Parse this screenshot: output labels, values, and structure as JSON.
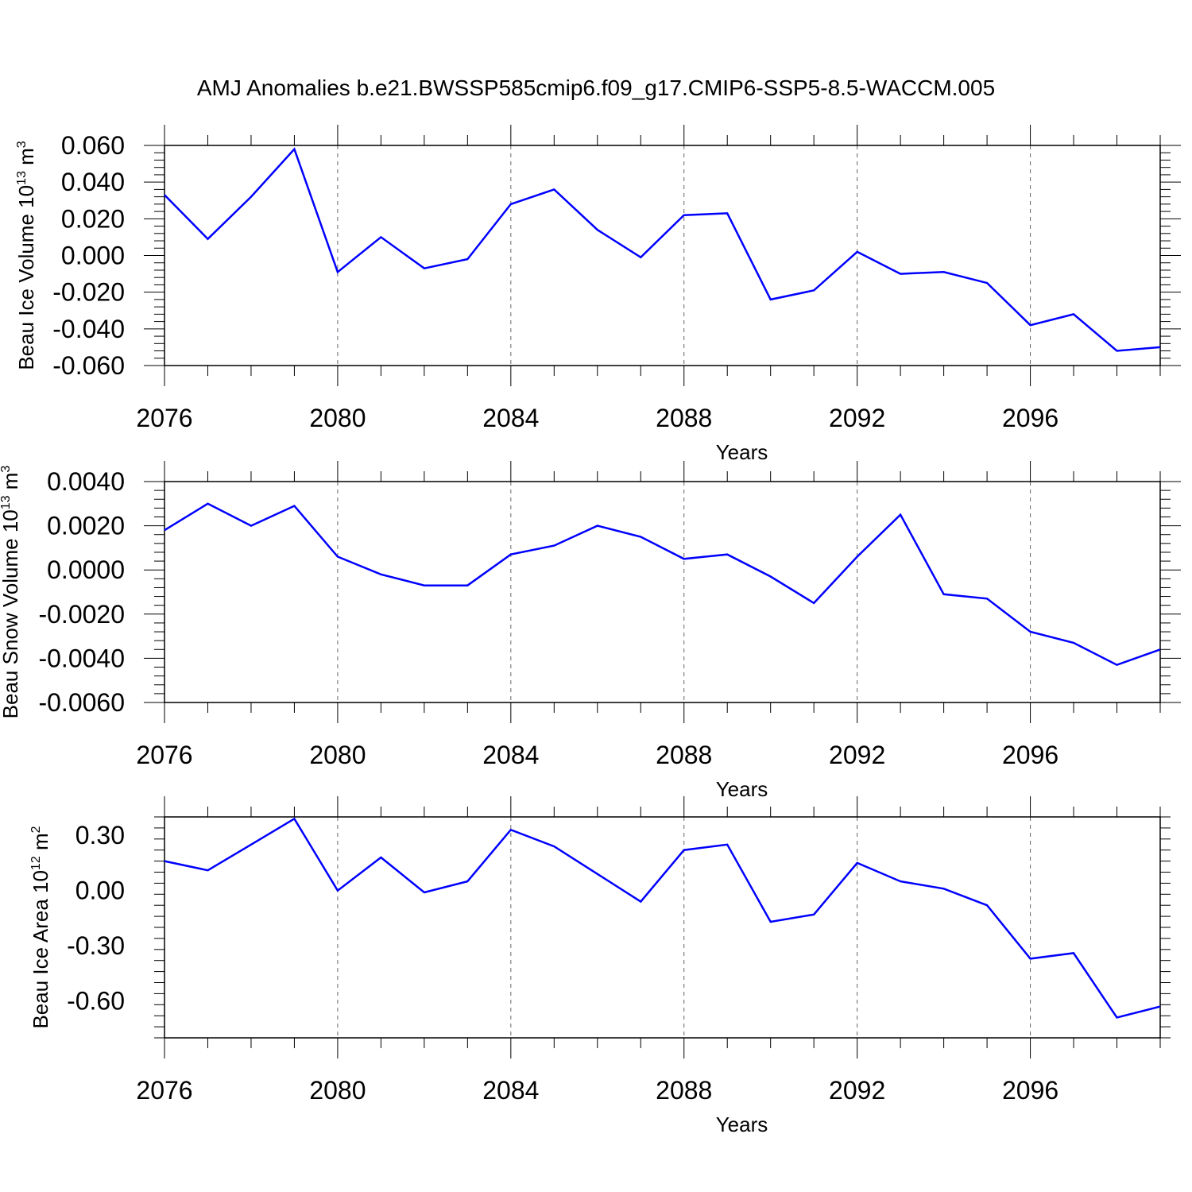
{
  "title": "AMJ Anomalies b.e21.BWSSP585cmip6.f09_g17.CMIP6-SSP5-8.5-WACCM.005",
  "line_color": "#0000ff",
  "chart_data": [
    {
      "type": "line",
      "ylabel_base": "Beau Ice Volume 10",
      "ylabel_exp": "13",
      "ylabel_unit": " m",
      "ylabel_unit_exp": "3",
      "xlabel": "Years",
      "xlim": [
        2076,
        2099
      ],
      "ylim": [
        -0.06,
        0.06
      ],
      "x_ticks": [
        "2076",
        "2080",
        "2084",
        "2088",
        "2092",
        "2096"
      ],
      "y_ticks": [
        "0.060",
        "0.040",
        "0.020",
        "0.000",
        "-0.020",
        "-0.040",
        "-0.060"
      ],
      "x": [
        2076,
        2077,
        2078,
        2079,
        2080,
        2081,
        2082,
        2083,
        2084,
        2085,
        2086,
        2087,
        2088,
        2089,
        2090,
        2091,
        2092,
        2093,
        2094,
        2095,
        2096,
        2097,
        2098,
        2099
      ],
      "values": [
        0.033,
        0.009,
        0.032,
        0.058,
        -0.009,
        0.01,
        -0.007,
        -0.002,
        0.028,
        0.036,
        0.014,
        -0.001,
        0.022,
        0.023,
        -0.024,
        -0.019,
        0.002,
        -0.01,
        -0.009,
        -0.015,
        -0.038,
        -0.032,
        -0.052,
        -0.05
      ]
    },
    {
      "type": "line",
      "ylabel_base": "Beau Snow Volume 10",
      "ylabel_exp": "13",
      "ylabel_unit": " m",
      "ylabel_unit_exp": "3",
      "xlabel": "Years",
      "xlim": [
        2076,
        2099
      ],
      "ylim": [
        -0.006,
        0.004
      ],
      "x_ticks": [
        "2076",
        "2080",
        "2084",
        "2088",
        "2092",
        "2096"
      ],
      "y_ticks": [
        "0.0040",
        "0.0020",
        "0.0000",
        "-0.0020",
        "-0.0040",
        "-0.0060"
      ],
      "x": [
        2076,
        2077,
        2078,
        2079,
        2080,
        2081,
        2082,
        2083,
        2084,
        2085,
        2086,
        2087,
        2088,
        2089,
        2090,
        2091,
        2092,
        2093,
        2094,
        2095,
        2096,
        2097,
        2098,
        2099
      ],
      "values": [
        0.0018,
        0.003,
        0.002,
        0.0029,
        0.0006,
        -0.0002,
        -0.0007,
        -0.0007,
        0.0007,
        0.0011,
        0.002,
        0.0015,
        0.0005,
        0.0007,
        -0.0003,
        -0.0015,
        0.0006,
        0.0025,
        -0.0011,
        -0.0013,
        -0.0028,
        -0.0033,
        -0.0043,
        -0.0036
      ]
    },
    {
      "type": "line",
      "ylabel_base": "Beau Ice Area 10",
      "ylabel_exp": "12",
      "ylabel_unit": " m",
      "ylabel_unit_exp": "2",
      "xlabel": "Years",
      "xlim": [
        2076,
        2099
      ],
      "ylim": [
        -0.8,
        0.4
      ],
      "x_ticks": [
        "2076",
        "2080",
        "2084",
        "2088",
        "2092",
        "2096"
      ],
      "y_ticks": [
        "0.30",
        "0.00",
        "-0.30",
        "-0.60"
      ],
      "x": [
        2076,
        2077,
        2078,
        2079,
        2080,
        2081,
        2082,
        2083,
        2084,
        2085,
        2086,
        2087,
        2088,
        2089,
        2090,
        2091,
        2092,
        2093,
        2094,
        2095,
        2096,
        2097,
        2098,
        2099
      ],
      "values": [
        0.16,
        0.11,
        0.25,
        0.39,
        0.0,
        0.18,
        -0.01,
        0.05,
        0.33,
        0.24,
        0.09,
        -0.06,
        0.22,
        0.25,
        -0.17,
        -0.13,
        0.15,
        0.05,
        0.01,
        -0.08,
        -0.37,
        -0.34,
        -0.69,
        -0.63
      ]
    }
  ]
}
